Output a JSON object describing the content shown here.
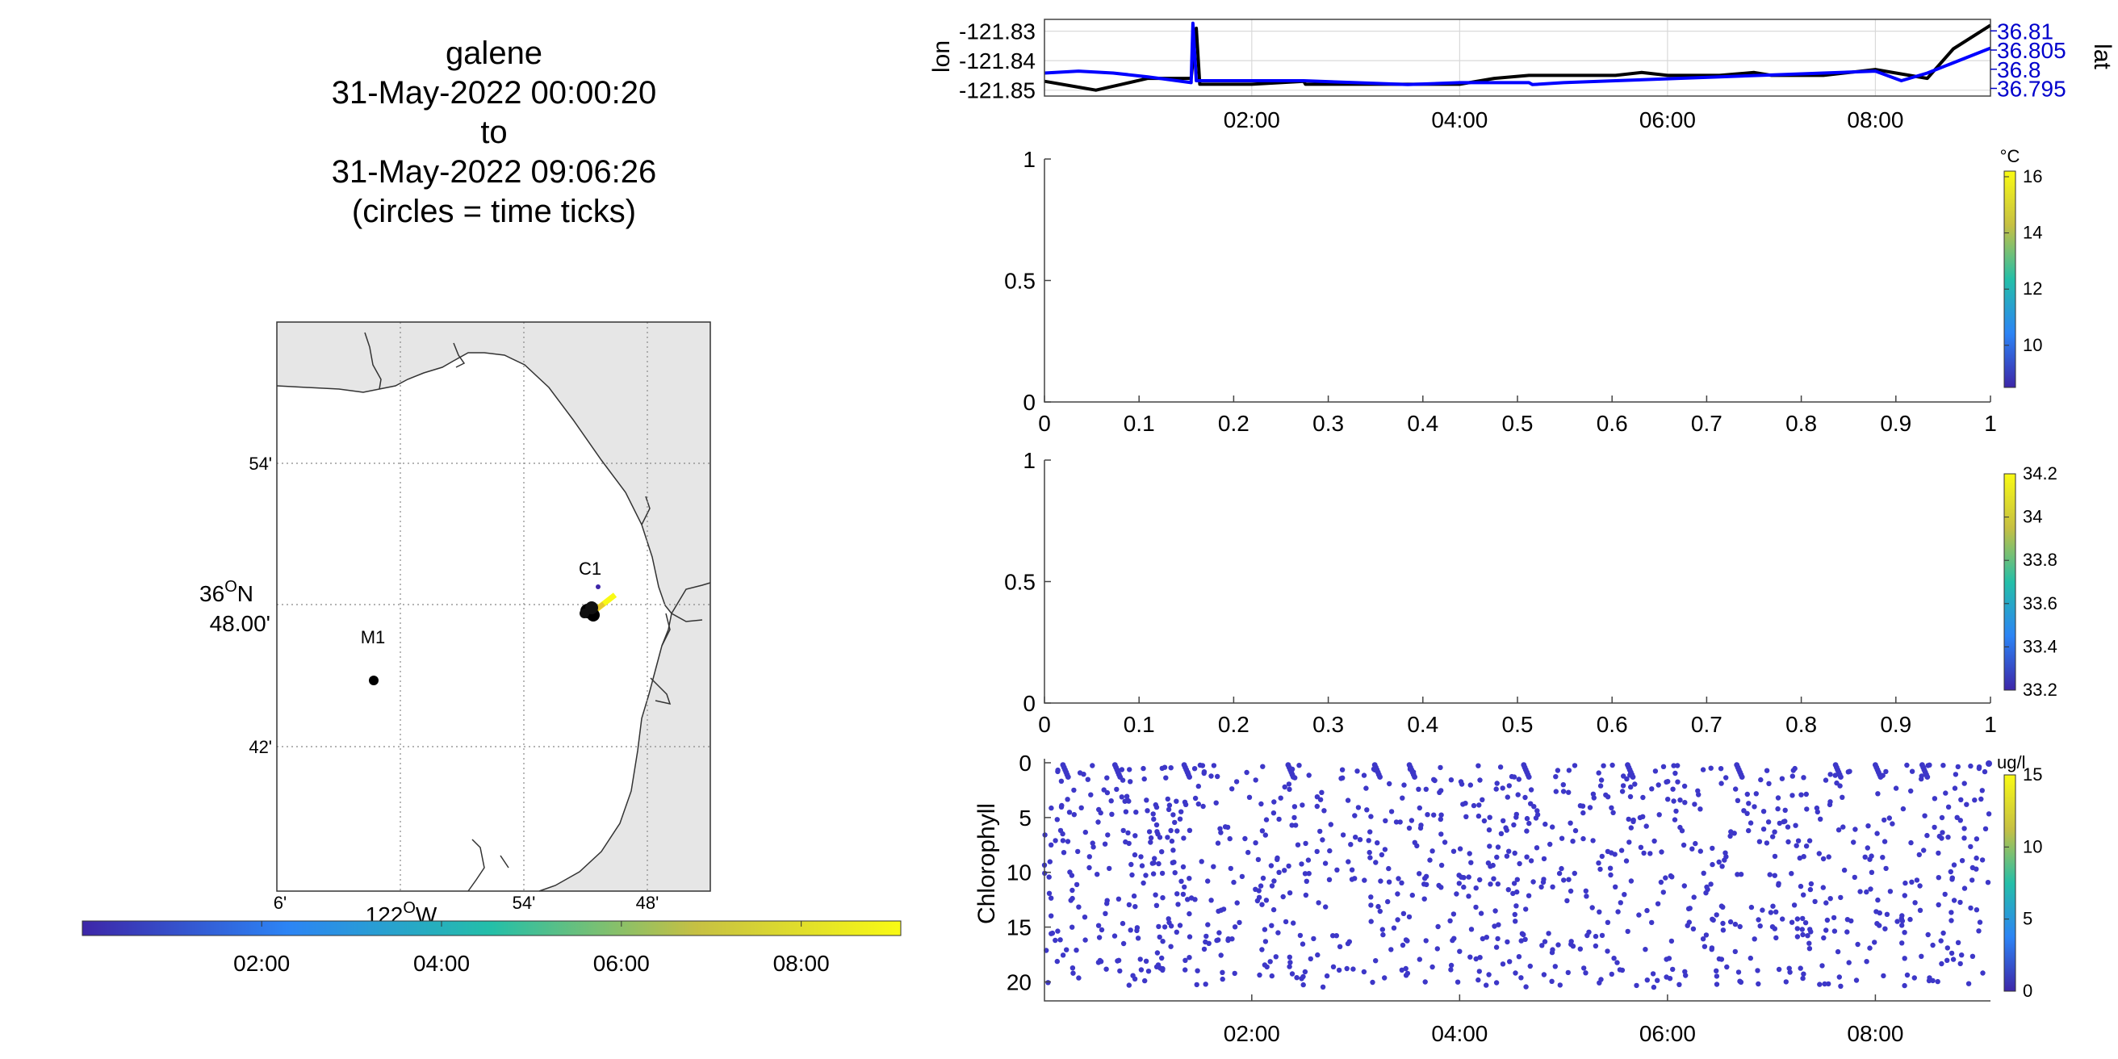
{
  "figure": {
    "title_lines": [
      "galene",
      "31-May-2022 00:00:20",
      "to",
      "31-May-2022 09:06:26",
      "(circles = time ticks)"
    ]
  },
  "map": {
    "lat_ticks": [
      "54'",
      "36",
      "48.00'",
      "42'"
    ],
    "lat_deg_sup": "O",
    "lat_deg_suffix": "N",
    "lon_ticks": [
      "6'",
      "54'",
      "48'"
    ],
    "lon_label_prefix": "122",
    "lon_deg_sup": "O",
    "lon_label_suffix": "W",
    "stations": [
      {
        "label": "C1"
      },
      {
        "label": "M1"
      }
    ],
    "colors": {
      "land": "#e6e6e6",
      "coast": "#333333",
      "grid": "#888888"
    }
  },
  "time_colorbar": {
    "ticks": [
      "02:00",
      "04:00",
      "06:00",
      "08:00"
    ],
    "colormap": [
      "#3d26a8",
      "#2c84f5",
      "#24bfa8",
      "#c6c043",
      "#f9fa14"
    ]
  },
  "chart_data": [
    {
      "type": "line",
      "panel": "position",
      "x_ticks": [
        "02:00",
        "04:00",
        "06:00",
        "08:00"
      ],
      "xlim": [
        "00:00:20",
        "09:06:26"
      ],
      "ylabel": "lon",
      "ylabel_right": "lat",
      "y_ticks": [
        "-121.83",
        "-121.84",
        "-121.85"
      ],
      "ylim": [
        -121.852,
        -121.826
      ],
      "y_right_ticks": [
        "36.81",
        "36.805",
        "36.8",
        "36.795"
      ],
      "ylim_right": [
        36.793,
        36.813
      ],
      "grid": true,
      "series": [
        {
          "axis": "left",
          "color": "#000000",
          "x": [
            "00:00:20",
            "00:20",
            "00:30",
            "00:45",
            "01:00",
            "01:25",
            "01:28",
            "01:30",
            "02:00",
            "02:30",
            "02:31",
            "03:00",
            "03:30",
            "04:00",
            "04:20",
            "04:40",
            "05:00",
            "05:30",
            "05:45",
            "06:00",
            "06:30",
            "06:50",
            "07:00",
            "07:30",
            "08:00",
            "08:30",
            "08:45",
            "09:06:26"
          ],
          "y": [
            -121.847,
            -121.849,
            -121.85,
            -121.848,
            -121.846,
            -121.846,
            -121.829,
            -121.848,
            -121.848,
            -121.847,
            -121.848,
            -121.848,
            -121.848,
            -121.848,
            -121.846,
            -121.845,
            -121.845,
            -121.845,
            -121.844,
            -121.845,
            -121.845,
            -121.844,
            -121.845,
            -121.845,
            -121.843,
            -121.846,
            -121.836,
            -121.828
          ]
        },
        {
          "axis": "right",
          "color": "#0000ff",
          "x": [
            "00:00:20",
            "00:20",
            "00:40",
            "01:00",
            "01:25",
            "01:26",
            "01:28",
            "02:00",
            "02:30",
            "03:00",
            "03:30",
            "04:00",
            "04:40",
            "04:42",
            "05:00",
            "05:30",
            "06:00",
            "06:30",
            "07:00",
            "07:30",
            "08:00",
            "08:15",
            "08:30",
            "09:06:26"
          ],
          "y": [
            36.799,
            36.7995,
            36.799,
            36.798,
            36.7965,
            36.812,
            36.797,
            36.797,
            36.797,
            36.7965,
            36.796,
            36.7965,
            36.7965,
            36.796,
            36.7965,
            36.797,
            36.7975,
            36.798,
            36.7985,
            36.799,
            36.7995,
            36.797,
            36.799,
            36.8055
          ]
        }
      ]
    },
    {
      "type": "scatter",
      "panel": "temperature",
      "x_ticks": [
        "0",
        "0.1",
        "0.2",
        "0.3",
        "0.4",
        "0.5",
        "0.6",
        "0.7",
        "0.8",
        "0.9",
        "1"
      ],
      "y_ticks": [
        "0",
        "0.5",
        "1"
      ],
      "xlim": [
        0,
        1
      ],
      "ylim": [
        0,
        1
      ],
      "colorbar": {
        "unit": "°C",
        "ticks": [
          "10",
          "12",
          "14",
          "16"
        ],
        "range": [
          8.5,
          16.2
        ]
      },
      "values": []
    },
    {
      "type": "scatter",
      "panel": "salinity",
      "x_ticks": [
        "0",
        "0.1",
        "0.2",
        "0.3",
        "0.4",
        "0.5",
        "0.6",
        "0.7",
        "0.8",
        "0.9",
        "1"
      ],
      "y_ticks": [
        "0",
        "0.5",
        "1"
      ],
      "xlim": [
        0,
        1
      ],
      "ylim": [
        0,
        1
      ],
      "colorbar": {
        "unit": "",
        "ticks": [
          "33.2",
          "33.4",
          "33.6",
          "33.8",
          "34",
          "34.2"
        ],
        "range": [
          33.2,
          34.2
        ]
      },
      "values": []
    },
    {
      "type": "scatter",
      "panel": "chlorophyll",
      "ylabel": "Chlorophyll",
      "x_ticks": [
        "02:00",
        "04:00",
        "06:00",
        "08:00"
      ],
      "xlim": [
        "00:00:20",
        "09:06:26"
      ],
      "y_ticks": [
        "0",
        "5",
        "10",
        "15",
        "20"
      ],
      "ylim": [
        21,
        0
      ],
      "point_color": "#3d37c8",
      "colorbar": {
        "unit": "ug/l",
        "ticks": [
          "0",
          "5",
          "10",
          "15"
        ],
        "range": [
          0,
          15
        ]
      },
      "profile_starts": [
        "00:11",
        "00:41",
        "01:21",
        "02:21",
        "03:11",
        "03:31",
        "04:37",
        "05:37",
        "06:40",
        "07:37",
        "08:00",
        "08:27"
      ]
    }
  ]
}
